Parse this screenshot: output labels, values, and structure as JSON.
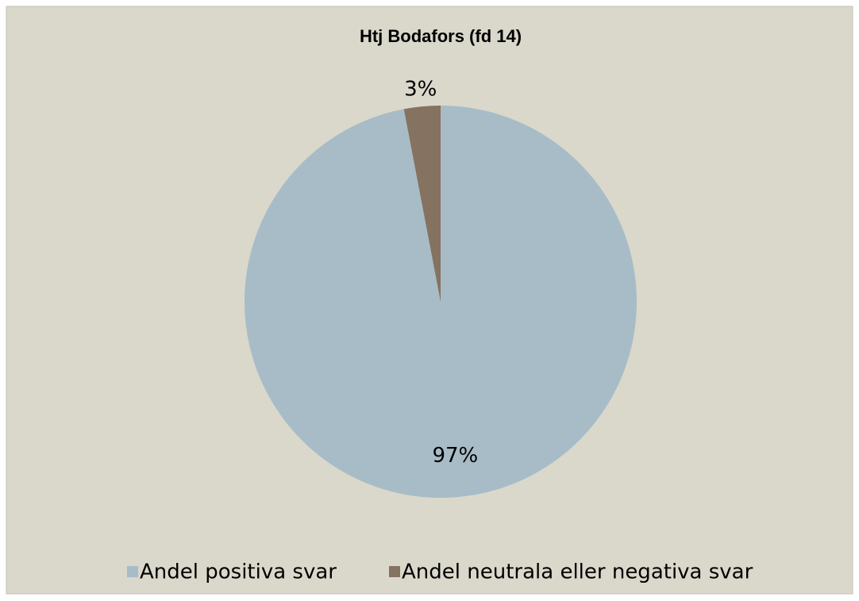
{
  "chart_data": {
    "type": "pie",
    "title": "Htj Bodafors (fd 14)",
    "categories": [
      "Andel positiva svar",
      "Andel neutrala eller negativa svar"
    ],
    "values": [
      97,
      3
    ],
    "value_labels": [
      "97%",
      "3%"
    ],
    "colors": [
      "#a7bcc7",
      "#857261"
    ],
    "legend": "bottom"
  }
}
